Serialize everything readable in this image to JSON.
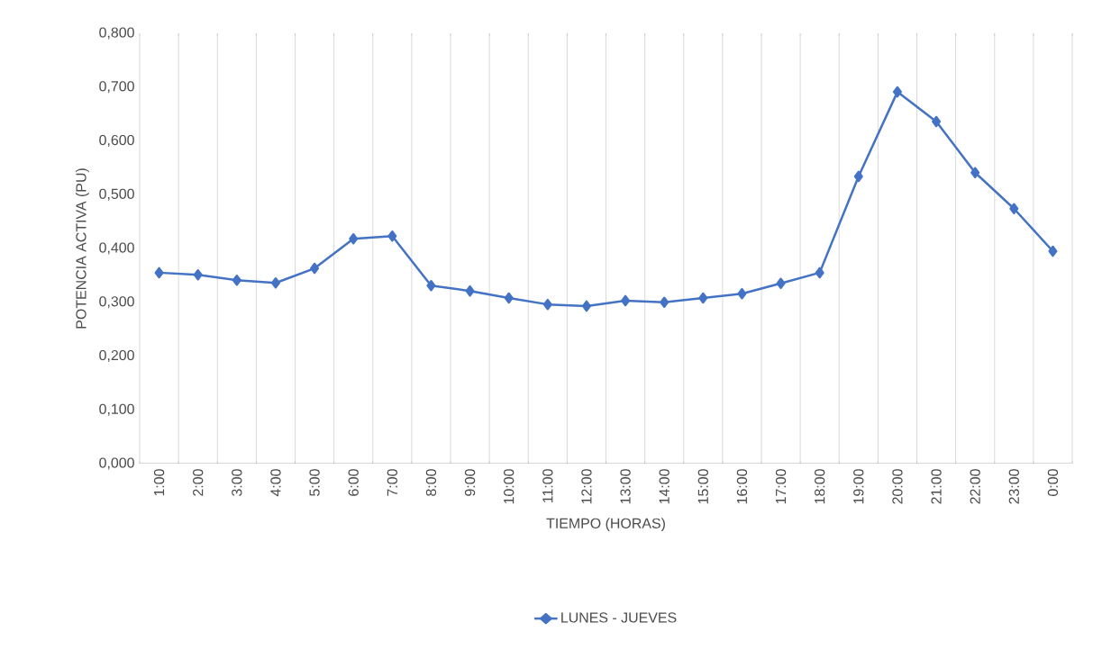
{
  "chart_data": {
    "type": "line",
    "xlabel": "TIEMPO (HORAS)",
    "ylabel": "POTENCIA ACTIVA (PU)",
    "categories": [
      "1:00",
      "2:00",
      "3:00",
      "4:00",
      "5:00",
      "6:00",
      "7:00",
      "8:00",
      "9:00",
      "10:00",
      "11:00",
      "12:00",
      "13:00",
      "14:00",
      "15:00",
      "16:00",
      "17:00",
      "18:00",
      "19:00",
      "20:00",
      "21:00",
      "22:00",
      "23:00",
      "0:00"
    ],
    "series": [
      {
        "name": "LUNES - JUEVES",
        "color": "#4472c4",
        "values": [
          0.355,
          0.351,
          0.341,
          0.336,
          0.363,
          0.418,
          0.423,
          0.331,
          0.321,
          0.308,
          0.296,
          0.293,
          0.303,
          0.3,
          0.308,
          0.316,
          0.335,
          0.355,
          0.534,
          0.691,
          0.636,
          0.541,
          0.474,
          0.395
        ]
      }
    ],
    "ylim": [
      0,
      0.8
    ],
    "yticks": [
      {
        "value": 0,
        "label": "0,000"
      },
      {
        "value": 0.1,
        "label": "0,100"
      },
      {
        "value": 0.2,
        "label": "0,200"
      },
      {
        "value": 0.3,
        "label": "0,300"
      },
      {
        "value": 0.4,
        "label": "0,400"
      },
      {
        "value": 0.5,
        "label": "0,500"
      },
      {
        "value": 0.6,
        "label": "0,600"
      },
      {
        "value": 0.7,
        "label": "0,700"
      },
      {
        "value": 0.8,
        "label": "0,800"
      }
    ],
    "grid": "x",
    "legend": "bottom",
    "marker": "diamond",
    "line_style": "solid"
  }
}
